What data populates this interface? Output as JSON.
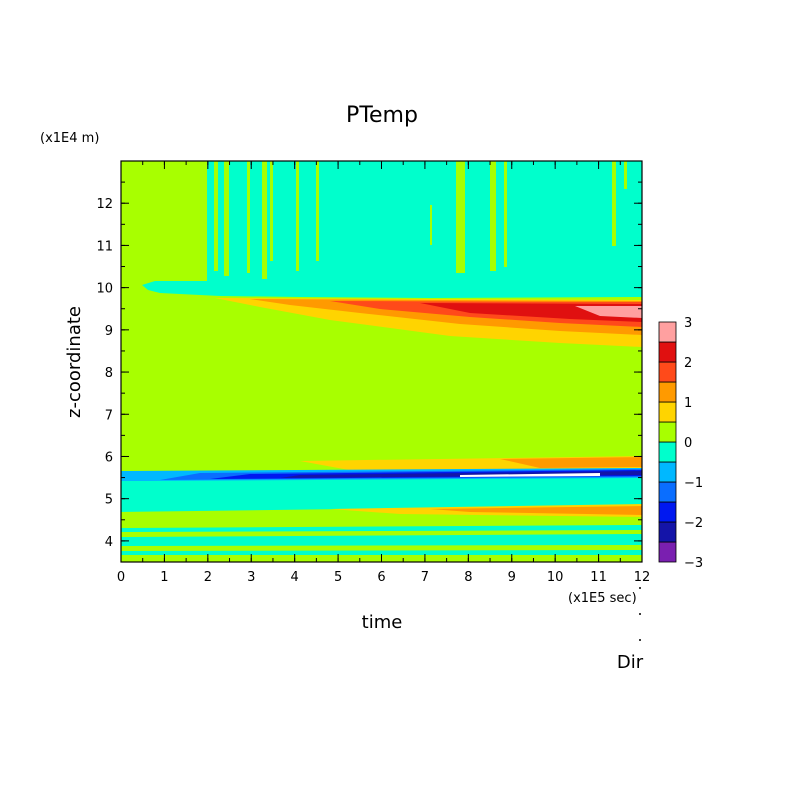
{
  "chart_data": {
    "type": "heatmap",
    "title": "PTemp",
    "xlabel": "time",
    "ylabel": "z-coordinate",
    "x_unit": "(x1E5 sec)",
    "y_unit": "(x1E4 m)",
    "footer_label": "Dir",
    "xlim": [
      0,
      12
    ],
    "ylim": [
      3.5,
      13
    ],
    "x_ticks": [
      "0",
      "1",
      "2",
      "3",
      "4",
      "5",
      "6",
      "7",
      "8",
      "9",
      "10",
      "11",
      "12"
    ],
    "y_ticks": [
      "4",
      "5",
      "6",
      "7",
      "8",
      "9",
      "10",
      "11",
      "12"
    ],
    "colorbar": {
      "labels": [
        "3",
        "2",
        "1",
        "0",
        "−1",
        "−2",
        "−3"
      ],
      "levels": [
        -3,
        -2.5,
        -2,
        -1.5,
        -1,
        -0.5,
        0,
        0.5,
        1,
        1.5,
        2,
        2.5,
        3
      ],
      "colors": [
        "#7a1fb0",
        "#1414a8",
        "#0018f0",
        "#0a6eff",
        "#00b8ff",
        "#00ffcc",
        "#a8ff00",
        "#ffd400",
        "#ff9a00",
        "#ff4a1a",
        "#e01010",
        "#ffa0a0"
      ]
    },
    "background_level": "0 to 0.5",
    "features": [
      {
        "desc": "upper layer",
        "z_range": [
          9.8,
          13
        ],
        "value_band": "-0.5 to 0"
      },
      {
        "desc": "warm band",
        "z_range": [
          8.6,
          9.8
        ],
        "value_band": "0.5 to 3"
      },
      {
        "desc": "middle layer",
        "z_range": [
          5.7,
          9.8
        ],
        "value_band": "0 to 0.5"
      },
      {
        "desc": "warm line",
        "z_range": [
          5.7,
          6.0
        ],
        "value_band": "0.5 to 1.5"
      },
      {
        "desc": "cold layer",
        "z_range": [
          5.3,
          5.7
        ],
        "value_band": "-3 to -0.5"
      },
      {
        "desc": "lower layer",
        "z_range": [
          3.5,
          5.3
        ],
        "value_band": "-0.5 to 1.5"
      }
    ]
  }
}
